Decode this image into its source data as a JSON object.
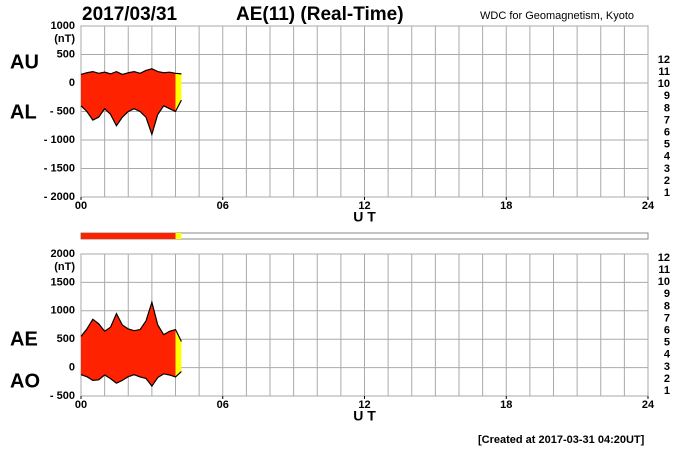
{
  "header": {
    "date": "2017/03/31",
    "title": "AE(11) (Real-Time)",
    "source": "WDC for Geomagnetism, Kyoto",
    "created": "[Created at 2017-03-31 04:20UT]"
  },
  "station_legend": [
    {
      "count": 12,
      "color": "#ff1493"
    },
    {
      "count": 11,
      "color": "#ff2200"
    },
    {
      "count": 10,
      "color": "#ff9900"
    },
    {
      "count": 9,
      "color": "#ffff00"
    },
    {
      "count": 8,
      "color": "#99ee00"
    },
    {
      "count": 7,
      "color": "#00ccff"
    },
    {
      "count": 6,
      "color": "#0077ff"
    },
    {
      "count": 5,
      "color": "#0000aa"
    },
    {
      "count": 4,
      "color": "#cc00cc"
    },
    {
      "count": 3,
      "color": "#000000"
    },
    {
      "count": 2,
      "color": "#777777"
    },
    {
      "count": 1,
      "color": "#cccccc"
    }
  ],
  "station_bar": [
    {
      "start": 0,
      "end": 4,
      "count": 11
    },
    {
      "start": 4,
      "end": 4.25,
      "count": 9
    }
  ],
  "chart_data": [
    {
      "type": "area",
      "unit": "(nT)",
      "xlabel": "U T",
      "xlim": [
        0,
        24
      ],
      "xticks": [
        {
          "value": 0,
          "label": "00"
        },
        {
          "value": 6,
          "label": "06"
        },
        12,
        18,
        24
      ],
      "x_grid_interval": 1,
      "ylim": [
        -2000,
        1000
      ],
      "yticks": [
        {
          "value": -2000,
          "label": "- 2000"
        },
        {
          "value": -1500,
          "label": "- 1500"
        },
        {
          "value": -1000,
          "label": "- 1000"
        },
        {
          "value": -500,
          "label": "- 500"
        },
        0,
        500,
        1000
      ],
      "grid": true,
      "x": [
        0,
        0.25,
        0.5,
        0.75,
        1,
        1.25,
        1.5,
        1.75,
        2,
        2.25,
        2.5,
        2.75,
        3,
        3.25,
        3.5,
        3.75,
        4,
        4.25
      ],
      "series": [
        {
          "name": "AU",
          "color": "#000000",
          "values": [
            150,
            180,
            200,
            170,
            190,
            160,
            200,
            150,
            180,
            200,
            170,
            220,
            250,
            200,
            180,
            190,
            170,
            160
          ]
        },
        {
          "name": "AL",
          "color": "#000000",
          "values": [
            -400,
            -500,
            -650,
            -600,
            -450,
            -550,
            -750,
            -600,
            -500,
            -450,
            -500,
            -600,
            -900,
            -550,
            -400,
            -450,
            -500,
            -300
          ]
        }
      ]
    },
    {
      "type": "area",
      "unit": "(nT)",
      "xlabel": "U T",
      "xlim": [
        0,
        24
      ],
      "xticks": [
        {
          "value": 0,
          "label": "00"
        },
        {
          "value": 6,
          "label": "06"
        },
        12,
        18,
        24
      ],
      "x_grid_interval": 1,
      "ylim": [
        -500,
        2000
      ],
      "yticks": [
        {
          "value": -500,
          "label": "- 500"
        },
        0,
        500,
        1000,
        1500,
        2000
      ],
      "grid": true,
      "x": [
        0,
        0.25,
        0.5,
        0.75,
        1,
        1.25,
        1.5,
        1.75,
        2,
        2.25,
        2.5,
        2.75,
        3,
        3.25,
        3.5,
        3.75,
        4,
        4.25
      ],
      "series": [
        {
          "name": "AE",
          "color": "#000000",
          "values": [
            550,
            680,
            850,
            770,
            640,
            710,
            950,
            750,
            680,
            650,
            670,
            820,
            1150,
            750,
            580,
            640,
            670,
            460
          ]
        },
        {
          "name": "AO",
          "color": "#000000",
          "values": [
            -125,
            -160,
            -225,
            -215,
            -130,
            -195,
            -275,
            -225,
            -160,
            -125,
            -165,
            -190,
            -325,
            -175,
            -110,
            -130,
            -165,
            -70
          ]
        }
      ]
    }
  ]
}
